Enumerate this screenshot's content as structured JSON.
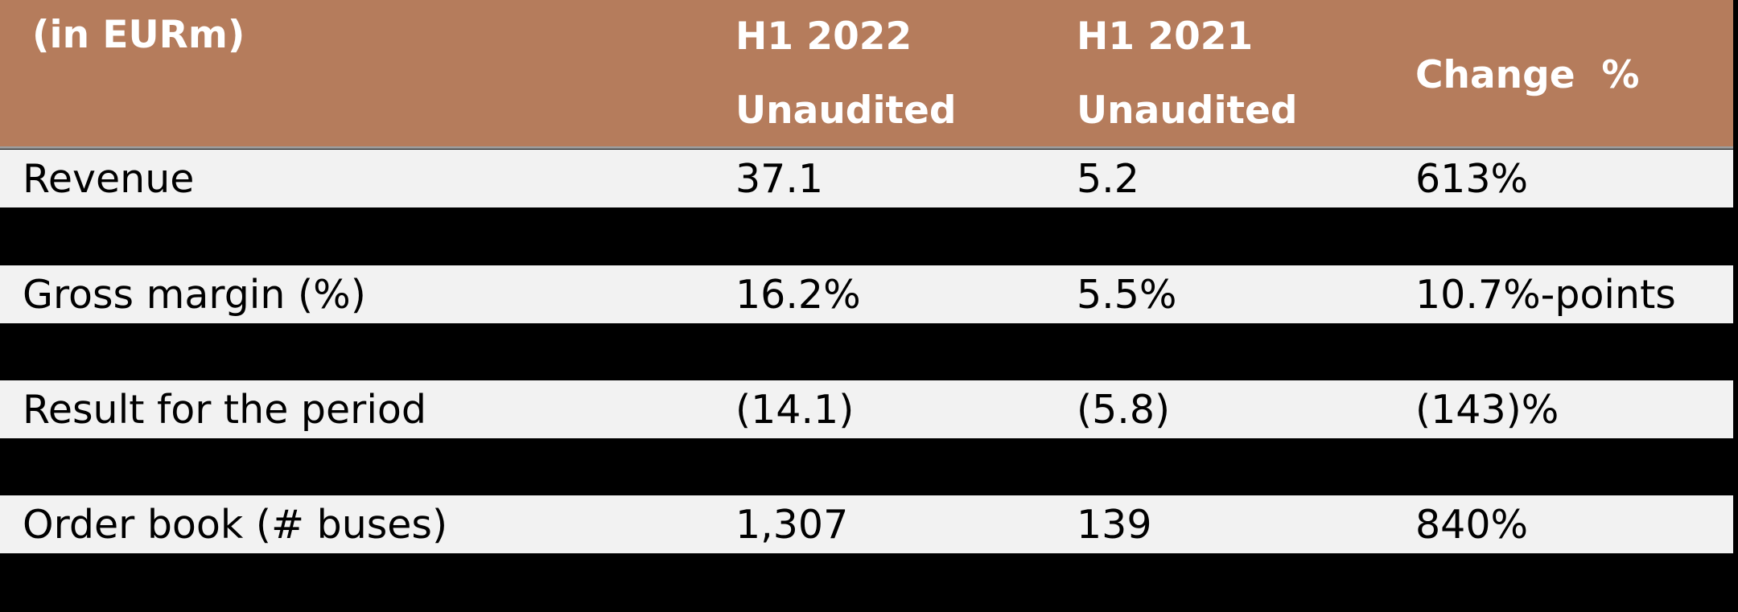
{
  "header": {
    "unit_label": "(in EURm)",
    "col1_period": "H1 2022",
    "col1_note": "Unaudited",
    "col2_period": "H1 2021",
    "col2_note": "Unaudited",
    "col3_label": "Change  %"
  },
  "rows": [
    {
      "label": "Revenue",
      "h1_2022": "37.1",
      "h1_2021": "5.2",
      "change": "613%"
    },
    {
      "label": "Gross margin (%)",
      "h1_2022": "16.2%",
      "h1_2021": "5.5%",
      "change": "10.7%-points"
    },
    {
      "label": "Result for the period",
      "h1_2022": "(14.1)",
      "h1_2021": "(5.8)",
      "change": "(143)%"
    },
    {
      "label": "Order book (# buses)",
      "h1_2022": "1,307",
      "h1_2021": "139",
      "change": "840%"
    }
  ],
  "colors": {
    "header_bg": "#b57c5c",
    "header_text": "#ffffff",
    "row_bg": "#f2f2f2",
    "separator": "#000000"
  }
}
